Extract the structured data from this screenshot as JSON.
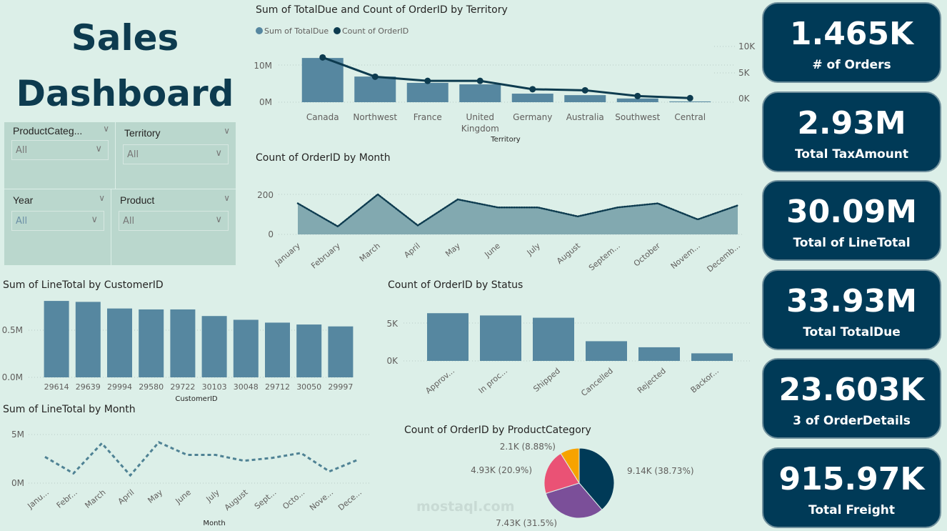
{
  "dashboard_title": "Sales Dashboard",
  "slicers": [
    {
      "label": "ProductCateg...",
      "value": "All"
    },
    {
      "label": "Territory",
      "value": "All"
    },
    {
      "label": "Year",
      "value": "All"
    },
    {
      "label": "Product",
      "value": "All"
    }
  ],
  "kpis": [
    {
      "value": "1.465K",
      "label": "# of Orders"
    },
    {
      "value": "2.93M",
      "label": "Total TaxAmount"
    },
    {
      "value": "30.09M",
      "label": "Total of LineTotal"
    },
    {
      "value": "33.93M",
      "label": "Total TotalDue"
    },
    {
      "value": "23.603K",
      "label": "3 of OrderDetails"
    },
    {
      "value": "915.97K",
      "label": "Total Freight"
    }
  ],
  "watermark": {
    "text": "mostaql.com"
  },
  "colors": {
    "bar": "#5687a0",
    "navy": "#0d3b4f",
    "area": "#82a9b0",
    "card": "#003a57"
  },
  "chart_data": [
    {
      "type": "bar",
      "title": "Sum of TotalDue and Count of OrderID by Territory",
      "xlabel": "Territory",
      "categories": [
        "Canada",
        "Northwest",
        "France",
        "United Kingdom",
        "Germany",
        "Australia",
        "Southwest",
        "Central"
      ],
      "series": [
        {
          "name": "Sum of TotalDue",
          "type": "bar",
          "values": [
            11.9,
            6.9,
            5.2,
            4.8,
            2.3,
            1.9,
            1.0,
            0.2
          ],
          "unit": "M",
          "axis": "left"
        },
        {
          "name": "Count of OrderID",
          "type": "line",
          "values": [
            7.9,
            4.2,
            3.4,
            3.4,
            1.8,
            1.6,
            0.5,
            0.1
          ],
          "unit": "K",
          "axis": "right"
        }
      ],
      "yticks": [
        "0M",
        "10M"
      ],
      "y2ticks": [
        "0K",
        "5K",
        "10K"
      ],
      "legend": "top-left"
    },
    {
      "type": "area",
      "title": "Count of OrderID by Month",
      "categories": [
        "January",
        "February",
        "March",
        "April",
        "May",
        "June",
        "July",
        "August",
        "Septem...",
        "October",
        "Novem...",
        "Decemb..."
      ],
      "values": [
        155,
        40,
        200,
        45,
        175,
        135,
        135,
        90,
        135,
        155,
        75,
        145
      ],
      "yticks": [
        "0",
        "200"
      ],
      "ylim": [
        0,
        200
      ]
    },
    {
      "type": "bar",
      "title": "Sum of LineTotal by CustomerID",
      "xlabel": "CustomerID",
      "categories": [
        "29614",
        "29639",
        "29994",
        "29580",
        "29722",
        "30103",
        "30048",
        "29712",
        "30050",
        "29997"
      ],
      "values": [
        0.81,
        0.8,
        0.73,
        0.72,
        0.72,
        0.65,
        0.61,
        0.58,
        0.56,
        0.54
      ],
      "yticks": [
        "0.0M",
        "0.5M"
      ]
    },
    {
      "type": "bar",
      "title": "Count of OrderID by Status",
      "categories": [
        "Approv...",
        "In proc...",
        "Shipped",
        "Cancelled",
        "Rejected",
        "Backor..."
      ],
      "values": [
        6.3,
        6.0,
        5.7,
        2.6,
        1.8,
        1.0
      ],
      "yticks": [
        "0K",
        "5K"
      ]
    },
    {
      "type": "line",
      "title": "Sum of LineTotal by Month",
      "xlabel": "Month",
      "categories": [
        "Janu...",
        "Febr...",
        "March",
        "April",
        "May",
        "June",
        "July",
        "August",
        "Sept...",
        "Octo...",
        "Nove...",
        "Dece..."
      ],
      "values": [
        2.7,
        1.0,
        4.1,
        0.8,
        4.2,
        2.9,
        2.9,
        2.3,
        2.6,
        3.1,
        1.2,
        2.4
      ],
      "yticks": [
        "0M",
        "5M"
      ]
    },
    {
      "type": "pie",
      "title": "Count of OrderID by ProductCategory",
      "slices": [
        {
          "label": "9.14K (38.73%)",
          "value": 38.73,
          "color": "#003a57"
        },
        {
          "label": "7.43K (31.5%)",
          "value": 31.5,
          "color": "#7b4f99"
        },
        {
          "label": "4.93K (20.9%)",
          "value": 20.9,
          "color": "#ea5275"
        },
        {
          "label": "2.1K (8.88%)",
          "value": 8.88,
          "color": "#f7a300"
        }
      ]
    }
  ]
}
